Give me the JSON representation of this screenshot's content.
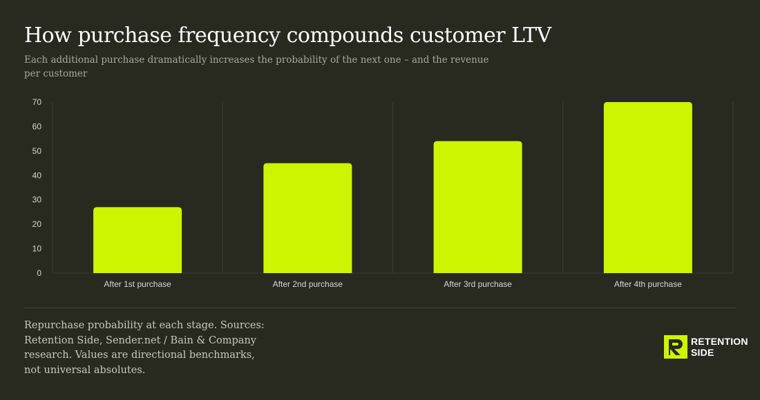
{
  "header": {
    "title": "How purchase frequency compounds customer LTV",
    "subtitle": "Each additional purchase dramatically increases the probability of the next one – and the revenue per customer"
  },
  "chart_data": {
    "type": "bar",
    "categories": [
      "After 1st purchase",
      "After 2nd purchase",
      "After 3rd purchase",
      "After 4th purchase"
    ],
    "values": [
      27,
      45,
      54,
      70
    ],
    "ylim": [
      0,
      70
    ],
    "yticks": [
      0,
      10,
      20,
      30,
      40,
      50,
      60,
      70
    ],
    "grid": "vertical",
    "colors": {
      "bar": "#cdf500",
      "grid": "#3b3d32",
      "background": "#282a20"
    }
  },
  "footer": {
    "note": "Repurchase probability at each stage. Sources: Retention Side, Sender.net / Bain & Company research. Values are directional benchmarks, not universal absolutes.",
    "logo_line1": "RETENTION",
    "logo_line2": "SIDE",
    "logo_icon": "retention-side-logo-icon"
  }
}
